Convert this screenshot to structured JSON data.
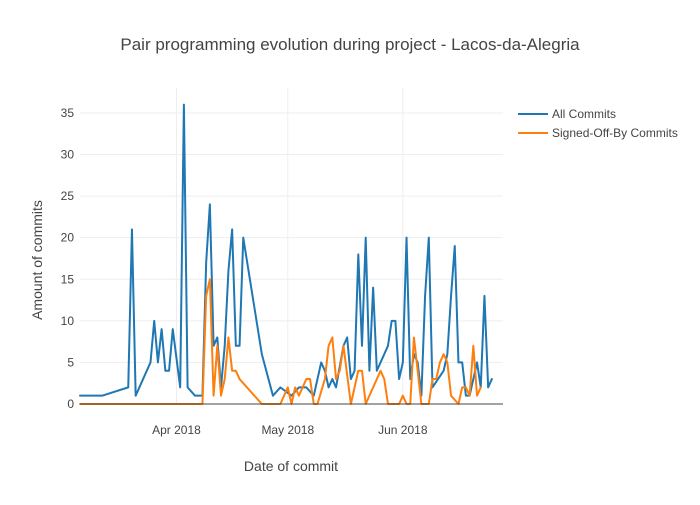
{
  "chart_data": {
    "type": "line",
    "title": "Pair programming evolution during project - Lacos-da-Alegria",
    "xlabel": "Date of commit",
    "ylabel": "Amount of commits",
    "x_range": [
      "2018-03-06",
      "2018-06-28"
    ],
    "ylim": [
      0,
      38
    ],
    "y_ticks": [
      0,
      5,
      10,
      15,
      20,
      25,
      30,
      35
    ],
    "x_ticks": [
      {
        "date": "2018-04-01",
        "label": "Apr 2018"
      },
      {
        "date": "2018-05-01",
        "label": "May 2018"
      },
      {
        "date": "2018-06-01",
        "label": "Jun 2018"
      }
    ],
    "grid": true,
    "legend_position": "top-right",
    "series": [
      {
        "name": "All Commits",
        "color": "#1f77b4",
        "points": [
          [
            "2018-03-06",
            1
          ],
          [
            "2018-03-12",
            1
          ],
          [
            "2018-03-19",
            2
          ],
          [
            "2018-03-20",
            21
          ],
          [
            "2018-03-21",
            1
          ],
          [
            "2018-03-25",
            5
          ],
          [
            "2018-03-26",
            10
          ],
          [
            "2018-03-27",
            5
          ],
          [
            "2018-03-28",
            9
          ],
          [
            "2018-03-29",
            4
          ],
          [
            "2018-03-30",
            4
          ],
          [
            "2018-03-31",
            9
          ],
          [
            "2018-04-02",
            2
          ],
          [
            "2018-04-03",
            36
          ],
          [
            "2018-04-04",
            2
          ],
          [
            "2018-04-06",
            1
          ],
          [
            "2018-04-08",
            1
          ],
          [
            "2018-04-09",
            17
          ],
          [
            "2018-04-10",
            24
          ],
          [
            "2018-04-11",
            7
          ],
          [
            "2018-04-12",
            8
          ],
          [
            "2018-04-13",
            2
          ],
          [
            "2018-04-14",
            7
          ],
          [
            "2018-04-15",
            16
          ],
          [
            "2018-04-16",
            21
          ],
          [
            "2018-04-17",
            7
          ],
          [
            "2018-04-18",
            7
          ],
          [
            "2018-04-19",
            20
          ],
          [
            "2018-04-24",
            6
          ],
          [
            "2018-04-27",
            1
          ],
          [
            "2018-04-29",
            2
          ],
          [
            "2018-05-02",
            1
          ],
          [
            "2018-05-04",
            2
          ],
          [
            "2018-05-06",
            2
          ],
          [
            "2018-05-08",
            1
          ],
          [
            "2018-05-10",
            5
          ],
          [
            "2018-05-11",
            4
          ],
          [
            "2018-05-12",
            2
          ],
          [
            "2018-05-13",
            3
          ],
          [
            "2018-05-14",
            2
          ],
          [
            "2018-05-16",
            7
          ],
          [
            "2018-05-17",
            8
          ],
          [
            "2018-05-18",
            3
          ],
          [
            "2018-05-19",
            4
          ],
          [
            "2018-05-20",
            18
          ],
          [
            "2018-05-21",
            7
          ],
          [
            "2018-05-22",
            20
          ],
          [
            "2018-05-23",
            4
          ],
          [
            "2018-05-24",
            14
          ],
          [
            "2018-05-25",
            4
          ],
          [
            "2018-05-28",
            7
          ],
          [
            "2018-05-29",
            10
          ],
          [
            "2018-05-30",
            10
          ],
          [
            "2018-05-31",
            3
          ],
          [
            "2018-06-01",
            5
          ],
          [
            "2018-06-02",
            20
          ],
          [
            "2018-06-03",
            3
          ],
          [
            "2018-06-04",
            6
          ],
          [
            "2018-06-05",
            5
          ],
          [
            "2018-06-06",
            1
          ],
          [
            "2018-06-07",
            13
          ],
          [
            "2018-06-08",
            20
          ],
          [
            "2018-06-09",
            2
          ],
          [
            "2018-06-12",
            4
          ],
          [
            "2018-06-13",
            6
          ],
          [
            "2018-06-14",
            13
          ],
          [
            "2018-06-15",
            19
          ],
          [
            "2018-06-16",
            5
          ],
          [
            "2018-06-17",
            5
          ],
          [
            "2018-06-18",
            1
          ],
          [
            "2018-06-19",
            1
          ],
          [
            "2018-06-21",
            5
          ],
          [
            "2018-06-22",
            2
          ],
          [
            "2018-06-23",
            13
          ],
          [
            "2018-06-24",
            2
          ],
          [
            "2018-06-25",
            3
          ]
        ]
      },
      {
        "name": "Signed-Off-By Commits",
        "color": "#ff7f0e",
        "points": [
          [
            "2018-03-06",
            0
          ],
          [
            "2018-04-07",
            0
          ],
          [
            "2018-04-08",
            0
          ],
          [
            "2018-04-09",
            13
          ],
          [
            "2018-04-10",
            15
          ],
          [
            "2018-04-11",
            1
          ],
          [
            "2018-04-12",
            7
          ],
          [
            "2018-04-13",
            1
          ],
          [
            "2018-04-14",
            3
          ],
          [
            "2018-04-15",
            8
          ],
          [
            "2018-04-16",
            4
          ],
          [
            "2018-04-17",
            4
          ],
          [
            "2018-04-18",
            3
          ],
          [
            "2018-04-22",
            1
          ],
          [
            "2018-04-24",
            0
          ],
          [
            "2018-04-29",
            0
          ],
          [
            "2018-05-01",
            2
          ],
          [
            "2018-05-02",
            0
          ],
          [
            "2018-05-03",
            2
          ],
          [
            "2018-05-04",
            1
          ],
          [
            "2018-05-06",
            3
          ],
          [
            "2018-05-07",
            3
          ],
          [
            "2018-05-08",
            0
          ],
          [
            "2018-05-09",
            0
          ],
          [
            "2018-05-11",
            3
          ],
          [
            "2018-05-12",
            7
          ],
          [
            "2018-05-13",
            8
          ],
          [
            "2018-05-14",
            3
          ],
          [
            "2018-05-15",
            4
          ],
          [
            "2018-05-16",
            7
          ],
          [
            "2018-05-18",
            0
          ],
          [
            "2018-05-20",
            4
          ],
          [
            "2018-05-21",
            4
          ],
          [
            "2018-05-22",
            0
          ],
          [
            "2018-05-25",
            3
          ],
          [
            "2018-05-26",
            4
          ],
          [
            "2018-05-27",
            3
          ],
          [
            "2018-05-28",
            0
          ],
          [
            "2018-05-31",
            0
          ],
          [
            "2018-06-01",
            1
          ],
          [
            "2018-06-02",
            0
          ],
          [
            "2018-06-03",
            0
          ],
          [
            "2018-06-04",
            8
          ],
          [
            "2018-06-05",
            4
          ],
          [
            "2018-06-06",
            0
          ],
          [
            "2018-06-08",
            0
          ],
          [
            "2018-06-09",
            3
          ],
          [
            "2018-06-10",
            3
          ],
          [
            "2018-06-11",
            5
          ],
          [
            "2018-06-12",
            6
          ],
          [
            "2018-06-13",
            5
          ],
          [
            "2018-06-14",
            1
          ],
          [
            "2018-06-16",
            0
          ],
          [
            "2018-06-17",
            2
          ],
          [
            "2018-06-18",
            2
          ],
          [
            "2018-06-19",
            1
          ],
          [
            "2018-06-20",
            7
          ],
          [
            "2018-06-21",
            1
          ],
          [
            "2018-06-22",
            2
          ]
        ]
      }
    ]
  }
}
